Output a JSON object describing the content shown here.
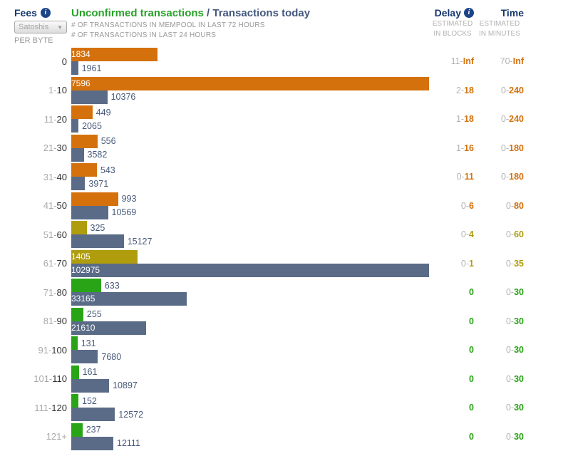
{
  "header": {
    "fees_label": "Fees",
    "unit_dropdown": "Satoshis",
    "dropdown_arrow": "▼",
    "per_byte_label": "PER BYTE",
    "title_green": "Unconfirmed transactions",
    "title_slate": " / Transactions today",
    "subtitle_line1": "# OF TRANSACTIONS IN MEMPOOL IN LAST 72 HOURS",
    "subtitle_line2": "# OF TRANSACTIONS IN LAST 24 HOURS",
    "delay_label": "Delay",
    "delay_sub1": "ESTIMATED",
    "delay_sub2": "IN BLOCKS",
    "time_label": "Time",
    "time_sub1": "ESTIMATED",
    "time_sub2": "IN MINUTES",
    "info_glyph": "i"
  },
  "colors": {
    "orange": "#d4710d",
    "olive": "#b09d0e",
    "green": "#2aa417",
    "slate": "#5a6b87",
    "navy": "#17386f",
    "title_green": "#28a228",
    "title_slate": "#44587e",
    "muted_text": "#a9a9a9",
    "outside_label": "#47597a"
  },
  "chart_data": {
    "type": "bar",
    "orientation": "horizontal",
    "title": "Unconfirmed transactions / Transactions today",
    "categories": [
      "0",
      "1-10",
      "11-20",
      "21-30",
      "31-40",
      "41-50",
      "51-60",
      "61-70",
      "71-80",
      "81-90",
      "91-100",
      "101-110",
      "111-120",
      "121+"
    ],
    "series": [
      {
        "name": "# of transactions in mempool in last 72 hours",
        "values": [
          1834,
          7596,
          449,
          556,
          543,
          993,
          325,
          1405,
          633,
          255,
          131,
          161,
          152,
          237
        ]
      },
      {
        "name": "# of transactions in last 24 hours",
        "values": [
          1961,
          10376,
          2065,
          3582,
          3971,
          10569,
          15127,
          102975,
          33165,
          21610,
          7680,
          10897,
          12572,
          12111
        ]
      }
    ],
    "note": "each series scaled independently to its own maximum",
    "rows": [
      {
        "fee_muted": "",
        "fee_dark": "0",
        "mempool": 1834,
        "today": 1961,
        "level": "orange",
        "delay_muted": "11-",
        "delay_strong": "Inf",
        "time_muted": "70-",
        "time_strong": "Inf"
      },
      {
        "fee_muted": "1-",
        "fee_dark": "10",
        "mempool": 7596,
        "today": 10376,
        "level": "orange",
        "delay_muted": "2-",
        "delay_strong": "18",
        "time_muted": "0-",
        "time_strong": "240"
      },
      {
        "fee_muted": "11-",
        "fee_dark": "20",
        "mempool": 449,
        "today": 2065,
        "level": "orange",
        "delay_muted": "1-",
        "delay_strong": "18",
        "time_muted": "0-",
        "time_strong": "240"
      },
      {
        "fee_muted": "21-",
        "fee_dark": "30",
        "mempool": 556,
        "today": 3582,
        "level": "orange",
        "delay_muted": "1-",
        "delay_strong": "16",
        "time_muted": "0-",
        "time_strong": "180"
      },
      {
        "fee_muted": "31-",
        "fee_dark": "40",
        "mempool": 543,
        "today": 3971,
        "level": "orange",
        "delay_muted": "0-",
        "delay_strong": "11",
        "time_muted": "0-",
        "time_strong": "180"
      },
      {
        "fee_muted": "41-",
        "fee_dark": "50",
        "mempool": 993,
        "today": 10569,
        "level": "orange",
        "delay_muted": "0-",
        "delay_strong": "6",
        "time_muted": "0-",
        "time_strong": "80"
      },
      {
        "fee_muted": "51-",
        "fee_dark": "60",
        "mempool": 325,
        "today": 15127,
        "level": "olive",
        "delay_muted": "0-",
        "delay_strong": "4",
        "time_muted": "0-",
        "time_strong": "60"
      },
      {
        "fee_muted": "61-",
        "fee_dark": "70",
        "mempool": 1405,
        "today": 102975,
        "level": "olive",
        "delay_muted": "0-",
        "delay_strong": "1",
        "time_muted": "0-",
        "time_strong": "35"
      },
      {
        "fee_muted": "71-",
        "fee_dark": "80",
        "mempool": 633,
        "today": 33165,
        "level": "green",
        "delay_muted": "",
        "delay_strong": "0",
        "time_muted": "0-",
        "time_strong": "30"
      },
      {
        "fee_muted": "81-",
        "fee_dark": "90",
        "mempool": 255,
        "today": 21610,
        "level": "green",
        "delay_muted": "",
        "delay_strong": "0",
        "time_muted": "0-",
        "time_strong": "30"
      },
      {
        "fee_muted": "91-",
        "fee_dark": "100",
        "mempool": 131,
        "today": 7680,
        "level": "green",
        "delay_muted": "",
        "delay_strong": "0",
        "time_muted": "0-",
        "time_strong": "30"
      },
      {
        "fee_muted": "101-",
        "fee_dark": "110",
        "mempool": 161,
        "today": 10897,
        "level": "green",
        "delay_muted": "",
        "delay_strong": "0",
        "time_muted": "0-",
        "time_strong": "30"
      },
      {
        "fee_muted": "111-",
        "fee_dark": "120",
        "mempool": 152,
        "today": 12572,
        "level": "green",
        "delay_muted": "",
        "delay_strong": "0",
        "time_muted": "0-",
        "time_strong": "30"
      },
      {
        "fee_muted": "121+",
        "fee_dark": "",
        "mempool": 237,
        "today": 12111,
        "level": "green",
        "delay_muted": "",
        "delay_strong": "0",
        "time_muted": "0-",
        "time_strong": "30"
      }
    ]
  }
}
